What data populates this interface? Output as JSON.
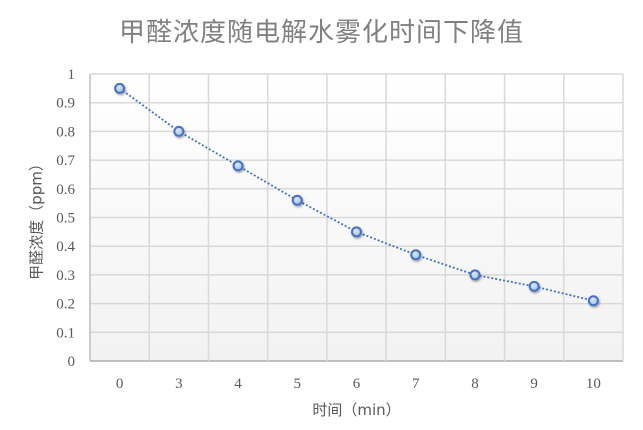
{
  "chart_data": {
    "type": "line",
    "title": "甲醛浓度随电解水雾化时间下降值",
    "xlabel": "时间（min）",
    "ylabel": "甲醛浓度（ppm）",
    "categories": [
      "0",
      "3",
      "4",
      "5",
      "6",
      "7",
      "8",
      "9",
      "10"
    ],
    "series": [
      {
        "name": "甲醛浓度",
        "values": [
          0.95,
          0.8,
          0.68,
          0.56,
          0.45,
          0.37,
          0.3,
          0.26,
          0.21
        ],
        "line_style": "dotted",
        "marker": "circle",
        "color": "#4472C4",
        "marker_fill": "#A9C4EB"
      }
    ],
    "ylim": [
      0,
      1
    ],
    "yticks": [
      "0",
      "0.1",
      "0.2",
      "0.3",
      "0.4",
      "0.5",
      "0.6",
      "0.7",
      "0.8",
      "0.9",
      "1"
    ],
    "grid": true,
    "legend": null
  },
  "colors": {
    "title": "#808080",
    "grid": "#D9D9D9",
    "axis": "#BFBFBF",
    "tick_text": "#595959",
    "line": "#4472C4",
    "marker_fill": "#A9C4EB",
    "plot_bg_top": "#FFFFFF",
    "plot_bg_bottom": "#F2F2F2"
  }
}
